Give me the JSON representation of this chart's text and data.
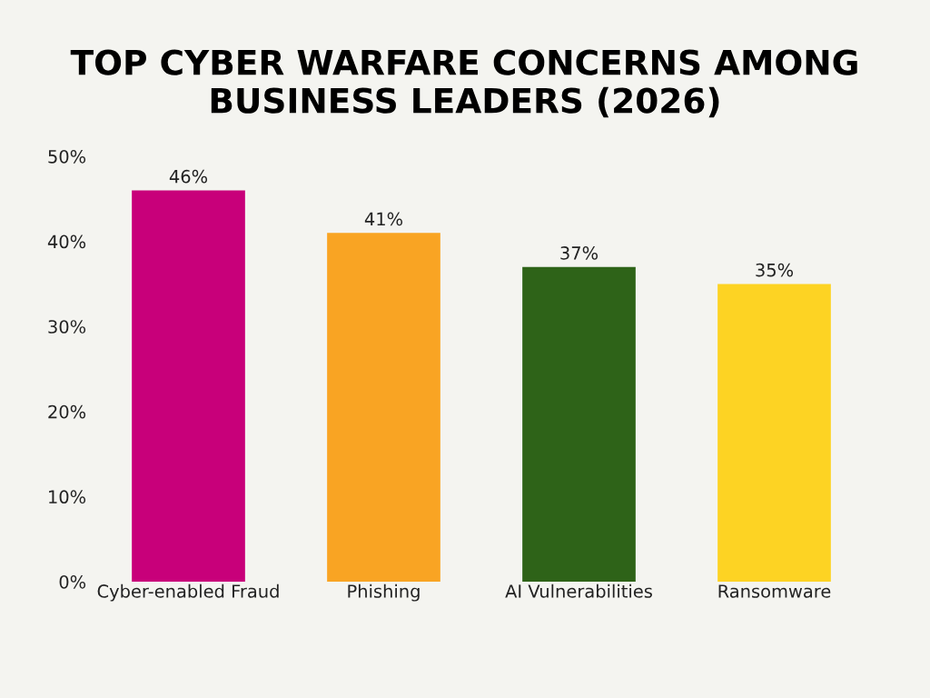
{
  "chart_data": {
    "type": "bar",
    "title": "TOP CYBER WARFARE CONCERNS AMONG BUSINESS LEADERS (2026)",
    "categories": [
      "Cyber-enabled Fraud",
      "Phishing",
      "AI Vulnerabilities",
      "Ransomware"
    ],
    "values": [
      46,
      41,
      37,
      35
    ],
    "colors": [
      "#c8007a",
      "#f9a423",
      "#2e6318",
      "#fdd323"
    ],
    "value_labels": [
      "46%",
      "41%",
      "37%",
      "35%"
    ],
    "ylim": [
      0,
      50
    ],
    "yticks": [
      {
        "value": 0,
        "label": "0%"
      },
      {
        "value": 10,
        "label": "10%"
      },
      {
        "value": 20,
        "label": "20%"
      },
      {
        "value": 30,
        "label": "30%"
      },
      {
        "value": 40,
        "label": "40%"
      },
      {
        "value": 50,
        "label": "50%"
      }
    ],
    "grid": false,
    "legend": false
  }
}
